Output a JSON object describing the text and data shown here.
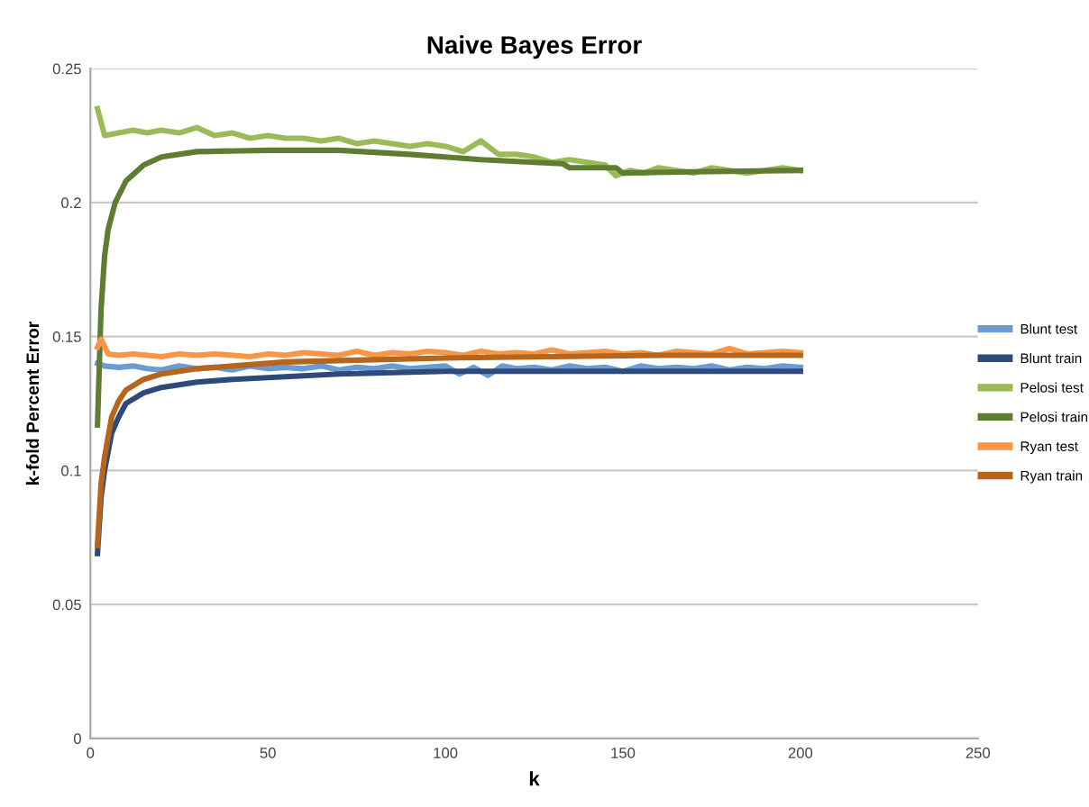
{
  "chart_data": {
    "type": "line",
    "title": "Naive Bayes Error",
    "xlabel": "k",
    "ylabel": "k-fold Percent Error",
    "xlim": [
      0,
      250
    ],
    "xticks": [
      0,
      50,
      100,
      150,
      200,
      250
    ],
    "ylim": [
      0,
      0.25
    ],
    "yticks": [
      0,
      0.05,
      0.1,
      0.15,
      0.2,
      0.25
    ],
    "grid": "y",
    "legend": "right",
    "marker": "none",
    "line_style": "solid",
    "series": [
      {
        "name": "Blunt test",
        "color": "#6a9bd1",
        "x": [
          2,
          4,
          8,
          12,
          16,
          20,
          25,
          30,
          35,
          40,
          45,
          50,
          55,
          60,
          65,
          70,
          75,
          80,
          85,
          90,
          95,
          100,
          104,
          108,
          112,
          116,
          120,
          125,
          130,
          135,
          140,
          145,
          150,
          155,
          160,
          165,
          170,
          175,
          180,
          185,
          190,
          195,
          200
        ],
        "values": [
          0.14,
          0.139,
          0.1385,
          0.139,
          0.138,
          0.1375,
          0.139,
          0.138,
          0.1385,
          0.1375,
          0.139,
          0.138,
          0.1385,
          0.138,
          0.139,
          0.1375,
          0.1385,
          0.138,
          0.139,
          0.138,
          0.1385,
          0.139,
          0.136,
          0.1385,
          0.1355,
          0.139,
          0.138,
          0.1385,
          0.1375,
          0.139,
          0.138,
          0.1385,
          0.137,
          0.139,
          0.138,
          0.1385,
          0.138,
          0.139,
          0.1375,
          0.1385,
          0.138,
          0.139,
          0.1385
        ]
      },
      {
        "name": "Blunt train",
        "color": "#2e4a7a",
        "x": [
          2,
          3,
          4,
          6,
          8,
          10,
          15,
          20,
          30,
          40,
          55,
          70,
          85,
          100,
          130,
          160,
          200
        ],
        "values": [
          0.069,
          0.09,
          0.1,
          0.114,
          0.12,
          0.125,
          0.129,
          0.131,
          0.133,
          0.134,
          0.135,
          0.136,
          0.1365,
          0.137,
          0.137,
          0.137,
          0.137
        ]
      },
      {
        "name": "Pelosi test",
        "color": "#9bbb59",
        "x": [
          2,
          4,
          8,
          12,
          16,
          20,
          25,
          30,
          35,
          40,
          45,
          50,
          55,
          60,
          65,
          70,
          75,
          80,
          85,
          90,
          95,
          100,
          105,
          110,
          115,
          120,
          125,
          130,
          135,
          140,
          145,
          148,
          152,
          156,
          160,
          165,
          170,
          175,
          180,
          185,
          190,
          195,
          200
        ],
        "values": [
          0.235,
          0.225,
          0.226,
          0.227,
          0.226,
          0.227,
          0.226,
          0.228,
          0.225,
          0.226,
          0.224,
          0.225,
          0.224,
          0.224,
          0.223,
          0.224,
          0.222,
          0.223,
          0.222,
          0.221,
          0.222,
          0.221,
          0.219,
          0.223,
          0.218,
          0.218,
          0.217,
          0.215,
          0.216,
          0.215,
          0.214,
          0.21,
          0.212,
          0.211,
          0.213,
          0.212,
          0.211,
          0.213,
          0.212,
          0.211,
          0.212,
          0.213,
          0.212
        ]
      },
      {
        "name": "Pelosi train",
        "color": "#5f7d32",
        "x": [
          2,
          3,
          4,
          5,
          7,
          10,
          15,
          20,
          30,
          50,
          70,
          90,
          110,
          125,
          133,
          135,
          148,
          150,
          170,
          200
        ],
        "values": [
          0.117,
          0.16,
          0.18,
          0.19,
          0.2,
          0.208,
          0.214,
          0.217,
          0.219,
          0.2195,
          0.2195,
          0.218,
          0.216,
          0.215,
          0.2145,
          0.213,
          0.213,
          0.211,
          0.2115,
          0.212
        ]
      },
      {
        "name": "Ryan test",
        "color": "#f79646",
        "x": [
          2,
          3,
          5,
          8,
          12,
          16,
          20,
          25,
          30,
          35,
          40,
          45,
          50,
          55,
          60,
          65,
          70,
          75,
          80,
          85,
          90,
          95,
          100,
          105,
          110,
          115,
          120,
          125,
          130,
          135,
          140,
          145,
          150,
          155,
          160,
          165,
          170,
          175,
          180,
          185,
          190,
          195,
          200
        ],
        "values": [
          0.146,
          0.149,
          0.1435,
          0.143,
          0.1435,
          0.143,
          0.1425,
          0.1435,
          0.143,
          0.1435,
          0.143,
          0.1425,
          0.1435,
          0.143,
          0.144,
          0.1435,
          0.143,
          0.1445,
          0.143,
          0.144,
          0.1435,
          0.1445,
          0.144,
          0.143,
          0.1445,
          0.1435,
          0.144,
          0.1435,
          0.145,
          0.1435,
          0.144,
          0.1445,
          0.1435,
          0.144,
          0.143,
          0.1445,
          0.144,
          0.1435,
          0.1455,
          0.1435,
          0.144,
          0.1445,
          0.144
        ]
      },
      {
        "name": "Ryan train",
        "color": "#b5651d",
        "x": [
          2,
          3,
          4,
          6,
          8,
          10,
          15,
          20,
          30,
          40,
          55,
          70,
          85,
          100,
          130,
          160,
          200
        ],
        "values": [
          0.072,
          0.095,
          0.105,
          0.12,
          0.126,
          0.13,
          0.134,
          0.136,
          0.138,
          0.139,
          0.1405,
          0.141,
          0.1415,
          0.142,
          0.1425,
          0.143,
          0.143
        ]
      }
    ]
  }
}
